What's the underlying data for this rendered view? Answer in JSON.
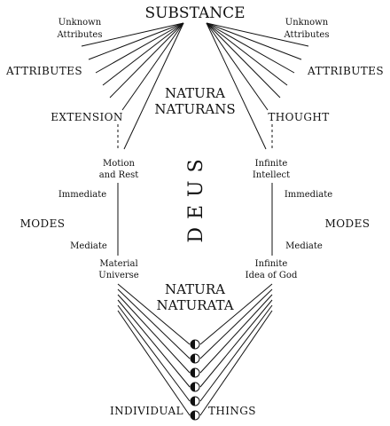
{
  "substance": "SUBSTANCE",
  "unknown_attributes_left": [
    "Unknown",
    "Attributes"
  ],
  "unknown_attributes_right": [
    "Unknown",
    "Attributes"
  ],
  "attributes_left": "ATTRIBUTES",
  "attributes_right": "ATTRIBUTES",
  "natura_naturans": [
    "NATURA",
    "NATURANS"
  ],
  "extension": "EXTENSION",
  "thought": "THOUGHT",
  "motion_and_rest": [
    "Motion",
    "and Rest"
  ],
  "infinite_intellect": [
    "Infinite",
    "Intellect"
  ],
  "deus": "DEUS",
  "immediate_left": "Immediate",
  "immediate_right": "Immediate",
  "modes_left": "MODES",
  "modes_right": "MODES",
  "mediate_left": "Mediate",
  "mediate_right": "Mediate",
  "material_universe": [
    "Material",
    "Universe"
  ],
  "infinite_idea_of_god": [
    "Infinite",
    "Idea of God"
  ],
  "natura_naturata": [
    "NATURA",
    "NATURATA"
  ],
  "individual": "INDIVIDUAL",
  "things": "THINGS",
  "individual_things_count": 6
}
